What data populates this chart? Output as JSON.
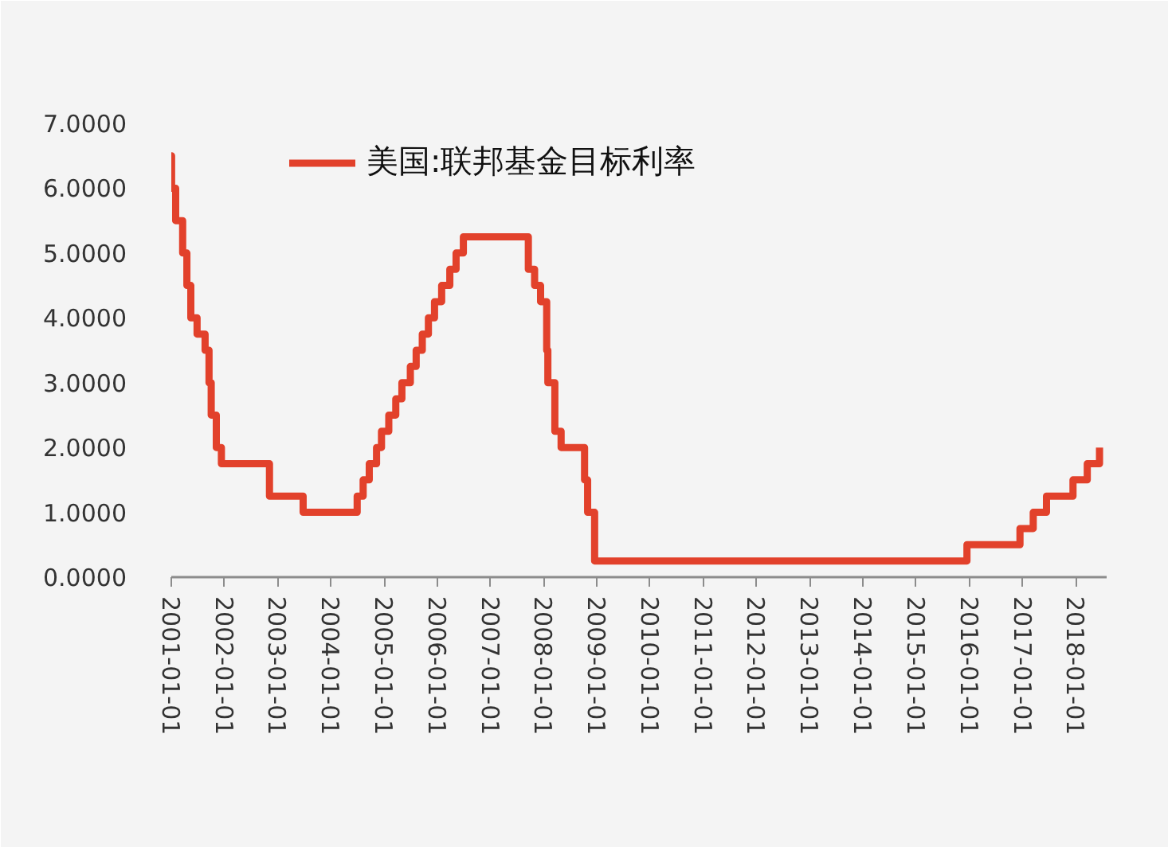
{
  "chart_data": {
    "type": "step",
    "x": [
      "2001-01-01",
      "2001-01-03",
      "2001-01-31",
      "2001-03-20",
      "2001-04-18",
      "2001-05-15",
      "2001-06-27",
      "2001-08-21",
      "2001-09-17",
      "2001-10-02",
      "2001-11-06",
      "2001-12-11",
      "2002-11-06",
      "2003-06-25",
      "2004-06-30",
      "2004-08-10",
      "2004-09-21",
      "2004-11-10",
      "2004-12-14",
      "2005-02-02",
      "2005-03-22",
      "2005-05-03",
      "2005-06-30",
      "2005-08-09",
      "2005-09-20",
      "2005-11-01",
      "2005-12-13",
      "2006-01-31",
      "2006-03-28",
      "2006-05-10",
      "2006-06-29",
      "2007-09-18",
      "2007-10-31",
      "2007-12-11",
      "2008-01-22",
      "2008-01-30",
      "2008-03-18",
      "2008-04-30",
      "2008-10-08",
      "2008-10-29",
      "2008-12-16",
      "2015-12-16",
      "2016-12-14",
      "2017-03-15",
      "2017-06-14",
      "2017-12-13",
      "2018-03-21",
      "2018-06-13"
    ],
    "series": [
      {
        "name": "美国:联邦基金目标利率",
        "color": "#e2412b",
        "values": [
          6.5,
          6.0,
          5.5,
          5.0,
          4.5,
          4.0,
          3.75,
          3.5,
          3.0,
          2.5,
          2.0,
          1.75,
          1.25,
          1.0,
          1.25,
          1.5,
          1.75,
          2.0,
          2.25,
          2.5,
          2.75,
          3.0,
          3.25,
          3.5,
          3.75,
          4.0,
          4.25,
          4.5,
          4.75,
          5.0,
          5.25,
          4.75,
          4.5,
          4.25,
          3.5,
          3.0,
          2.25,
          2.0,
          1.5,
          1.0,
          0.25,
          0.5,
          0.75,
          1.0,
          1.25,
          1.5,
          1.75,
          2.0
        ]
      }
    ],
    "xlim": [
      "2001-01-01",
      "2018-08-01"
    ],
    "xticks": [
      "2001-01-01",
      "2002-01-01",
      "2003-01-01",
      "2004-01-01",
      "2005-01-01",
      "2006-01-01",
      "2007-01-01",
      "2008-01-01",
      "2009-01-01",
      "2010-01-01",
      "2011-01-01",
      "2012-01-01",
      "2013-01-01",
      "2014-01-01",
      "2015-01-01",
      "2016-01-01",
      "2017-01-01",
      "2018-01-01"
    ],
    "ylim": [
      0,
      7
    ],
    "yticks": [
      {
        "value": 0,
        "label": "0.0000"
      },
      {
        "value": 1,
        "label": "1.0000"
      },
      {
        "value": 2,
        "label": "2.0000"
      },
      {
        "value": 3,
        "label": "3.0000"
      },
      {
        "value": 4,
        "label": "4.0000"
      },
      {
        "value": 5,
        "label": "5.0000"
      },
      {
        "value": 6,
        "label": "6.0000"
      },
      {
        "value": 7,
        "label": "7.0000"
      }
    ],
    "legend": "top left"
  }
}
